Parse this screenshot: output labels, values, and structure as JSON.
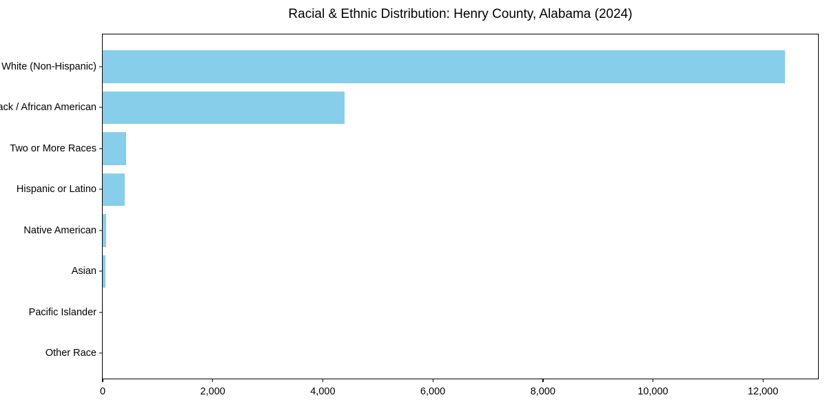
{
  "chart_data": {
    "type": "bar",
    "orientation": "horizontal",
    "title": "Racial & Ethnic Distribution: Henry County, Alabama (2024)",
    "categories": [
      "White (Non-Hispanic)",
      "Black / African American",
      "Two or More Races",
      "Hispanic or Latino",
      "Native American",
      "Asian",
      "Pacific Islander",
      "Other Race"
    ],
    "values": [
      12400,
      4400,
      430,
      400,
      65,
      45,
      0,
      0
    ],
    "xlabel": "",
    "ylabel": "",
    "xlim": [
      0,
      13000
    ],
    "xticks": [
      0,
      2000,
      4000,
      6000,
      8000,
      10000,
      12000
    ],
    "xticklabels": [
      "0",
      "2,000",
      "4,000",
      "6,000",
      "8,000",
      "10,000",
      "12,000"
    ],
    "bar_color": "#87CEEB",
    "axis_color": "#000000",
    "background_color": "#ffffff",
    "grid": false,
    "legend": false
  }
}
